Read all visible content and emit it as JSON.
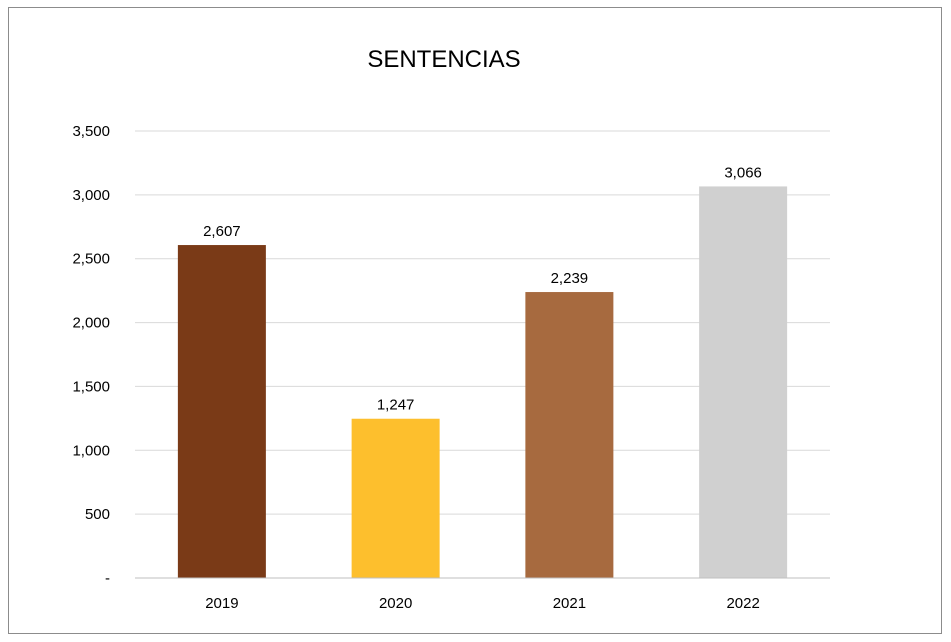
{
  "chart_data": {
    "type": "bar",
    "title": "SENTENCIAS",
    "categories": [
      "2019",
      "2020",
      "2021",
      "2022"
    ],
    "values": [
      2607,
      1247,
      2239,
      3066
    ],
    "value_labels": [
      "2,607",
      "1,247",
      "2,239",
      "3,066"
    ],
    "colors": [
      "#7a3a17",
      "#fdbf2d",
      "#a76a3f",
      "#d0d0d0"
    ],
    "ylim": [
      0,
      3500
    ],
    "yticks": [
      0,
      500,
      1000,
      1500,
      2000,
      2500,
      3000,
      3500
    ],
    "ytick_labels": [
      "-",
      "500",
      "1,000",
      "1,500",
      "2,000",
      "2,500",
      "3,000",
      "3,500"
    ],
    "xlabel": "",
    "ylabel": "",
    "grid": true,
    "legend": false
  }
}
